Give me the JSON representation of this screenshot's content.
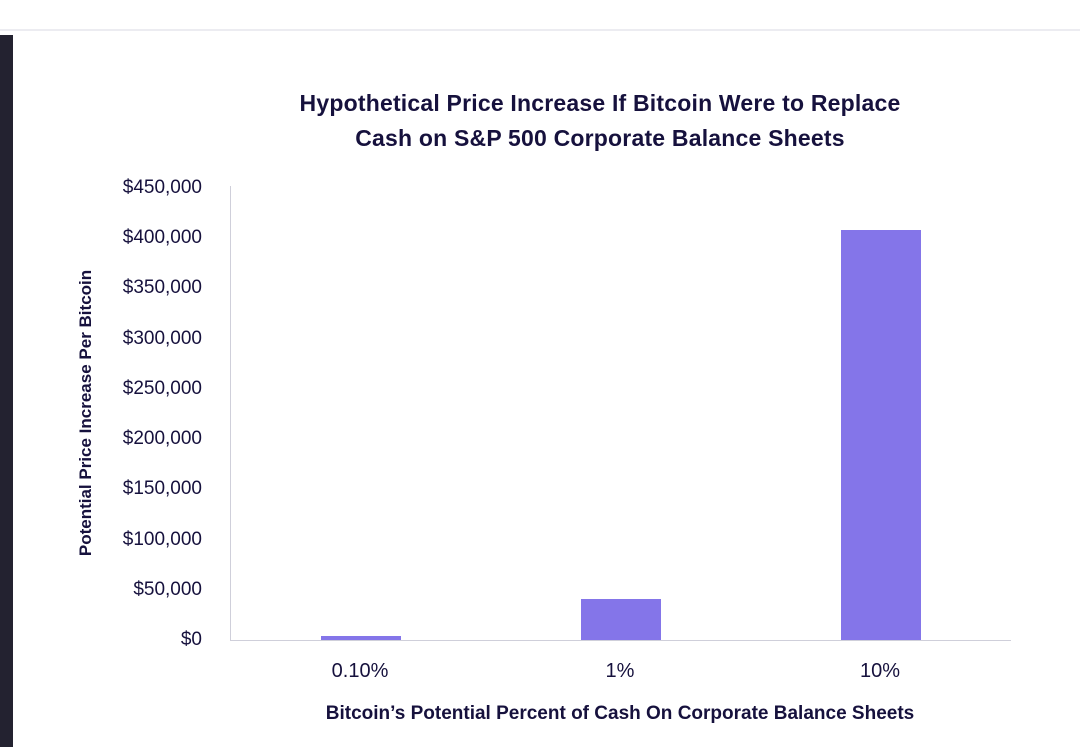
{
  "colors": {
    "bar": "#8475E9",
    "text": "#16113D",
    "axis_line": "#CFCFDA",
    "left_strip": "#232230",
    "background": "#FFFFFF"
  },
  "chart_data": {
    "type": "bar",
    "title": "Hypothetical Price Increase If Bitcoin Were to Replace Cash on S&P 500 Corporate Balance Sheets",
    "title_lines": [
      "Hypothetical Price Increase If Bitcoin Were to Replace",
      "Cash on S&P 500 Corporate Balance Sheets"
    ],
    "xlabel": "Bitcoin’s Potential Percent of Cash On Corporate Balance Sheets",
    "ylabel": "Potential Price Increase Per Bitcoin",
    "categories": [
      "0.10%",
      "1%",
      "10%"
    ],
    "values": [
      4000,
      41000,
      406000
    ],
    "ylim": [
      0,
      450000
    ],
    "yticks": [
      {
        "label": "$450,000",
        "value": 450000
      },
      {
        "label": "$400,000",
        "value": 400000
      },
      {
        "label": "$350,000",
        "value": 350000
      },
      {
        "label": "$300,000",
        "value": 300000
      },
      {
        "label": "$250,000",
        "value": 250000
      },
      {
        "label": "$200,000",
        "value": 200000
      },
      {
        "label": "$150,000",
        "value": 150000
      },
      {
        "label": "$100,000",
        "value": 100000
      },
      {
        "label": "$50,000",
        "value": 50000
      },
      {
        "label": "$0",
        "value": 0
      }
    ],
    "grid": false,
    "legend_position": "none"
  }
}
